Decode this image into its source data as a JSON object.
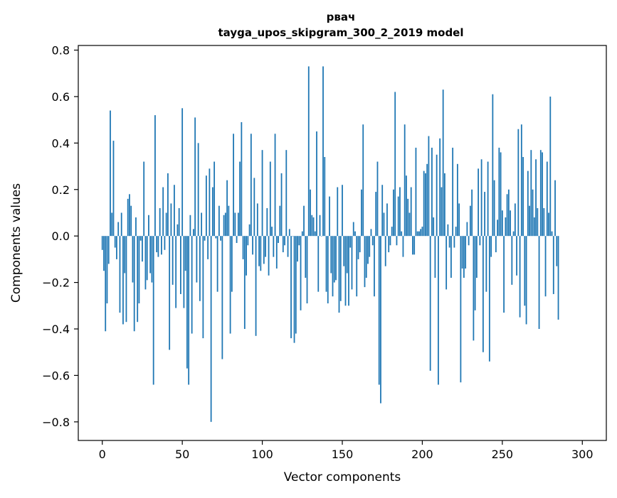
{
  "chart_data": {
    "type": "bar",
    "title": "рвач",
    "subtitle": "tayga_upos_skipgram_300_2_2019 model",
    "xlabel": "Vector components",
    "ylabel": "Components values",
    "xlim": [
      -15,
      315
    ],
    "ylim": [
      -0.88,
      0.82
    ],
    "xticks": [
      0,
      50,
      100,
      150,
      200,
      250,
      300
    ],
    "xtick_labels": [
      "0",
      "50",
      "100",
      "150",
      "200",
      "250",
      "300"
    ],
    "yticks": [
      -0.8,
      -0.6,
      -0.4,
      -0.2,
      0.0,
      0.2,
      0.4,
      0.6,
      0.8
    ],
    "ytick_labels": [
      "−0.8",
      "−0.6",
      "−0.4",
      "−0.2",
      "0.0",
      "0.2",
      "0.4",
      "0.6",
      "0.8"
    ],
    "grid": false,
    "bar_color": "#1f77b4",
    "values": [
      -0.06,
      -0.15,
      -0.41,
      -0.29,
      -0.12,
      0.54,
      0.1,
      0.41,
      -0.05,
      -0.1,
      0.06,
      -0.33,
      0.1,
      -0.38,
      -0.16,
      -0.37,
      0.16,
      0.18,
      0.13,
      -0.2,
      -0.41,
      0.08,
      -0.37,
      -0.29,
      -0.02,
      -0.11,
      0.32,
      -0.23,
      -0.19,
      0.09,
      -0.16,
      -0.2,
      -0.64,
      0.52,
      -0.07,
      -0.09,
      0.12,
      -0.08,
      0.21,
      -0.06,
      0.1,
      0.27,
      -0.49,
      0.14,
      -0.21,
      0.22,
      -0.31,
      0.05,
      0.12,
      -0.25,
      0.55,
      -0.31,
      -0.15,
      -0.57,
      -0.64,
      0.09,
      -0.42,
      0.03,
      0.51,
      -0.2,
      0.4,
      -0.28,
      0.1,
      -0.44,
      -0.02,
      0.26,
      -0.1,
      0.29,
      -0.8,
      0.21,
      0.32,
      -0.01,
      -0.24,
      0.13,
      -0.02,
      -0.53,
      0.09,
      0.1,
      0.24,
      0.13,
      -0.42,
      -0.24,
      0.44,
      0.1,
      -0.03,
      0.1,
      0.32,
      0.49,
      -0.1,
      -0.4,
      -0.17,
      -0.04,
      0.05,
      0.44,
      -0.08,
      0.25,
      -0.43,
      0.14,
      -0.13,
      -0.15,
      0.37,
      -0.12,
      -0.09,
      0.12,
      -0.17,
      0.32,
      0.04,
      -0.09,
      0.44,
      -0.14,
      -0.03,
      0.13,
      0.27,
      -0.07,
      -0.04,
      0.37,
      -0.09,
      0.03,
      -0.44,
      0.0,
      -0.46,
      -0.42,
      -0.11,
      -0.04,
      -0.32,
      0.02,
      0.13,
      -0.18,
      -0.29,
      0.73,
      0.2,
      0.09,
      0.08,
      0.02,
      0.45,
      -0.24,
      0.09,
      0.0,
      0.73,
      0.34,
      -0.24,
      -0.29,
      0.17,
      -0.16,
      -0.26,
      -0.2,
      -0.19,
      0.21,
      -0.33,
      -0.28,
      0.22,
      -0.13,
      -0.3,
      -0.16,
      -0.3,
      -0.05,
      -0.23,
      0.06,
      0.02,
      -0.26,
      -0.1,
      -0.07,
      0.2,
      0.48,
      -0.22,
      -0.18,
      -0.12,
      -0.09,
      0.03,
      -0.04,
      -0.26,
      0.19,
      0.32,
      -0.64,
      -0.72,
      0.22,
      0.1,
      -0.13,
      0.14,
      -0.07,
      -0.04,
      0.04,
      0.2,
      0.62,
      -0.04,
      0.17,
      0.21,
      0.02,
      -0.09,
      0.48,
      0.26,
      0.16,
      0.1,
      0.21,
      -0.08,
      -0.08,
      0.38,
      0.02,
      0.02,
      0.03,
      0.04,
      0.28,
      0.27,
      0.31,
      0.43,
      -0.58,
      0.38,
      0.08,
      -0.18,
      0.35,
      -0.64,
      0.42,
      0.21,
      0.63,
      0.27,
      -0.23,
      0.05,
      -0.05,
      -0.18,
      0.38,
      -0.05,
      0.04,
      0.31,
      0.14,
      -0.63,
      -0.14,
      -0.18,
      -0.14,
      0.06,
      -0.04,
      0.13,
      0.2,
      -0.45,
      -0.32,
      -0.18,
      0.29,
      -0.04,
      0.33,
      -0.5,
      0.19,
      -0.24,
      0.32,
      -0.54,
      -0.09,
      0.61,
      0.24,
      -0.07,
      0.07,
      0.38,
      0.36,
      0.11,
      -0.33,
      0.08,
      0.18,
      0.2,
      0.11,
      -0.21,
      0.02,
      0.14,
      -0.17,
      0.46,
      -0.35,
      0.48,
      0.34,
      -0.3,
      -0.38,
      0.28,
      0.13,
      0.37,
      0.2,
      0.08,
      0.33,
      0.12,
      -0.4,
      0.37,
      0.36,
      0.12,
      -0.26,
      0.32,
      0.1,
      0.6,
      0.02,
      -0.25,
      0.24,
      -0.13,
      -0.36
    ]
  }
}
